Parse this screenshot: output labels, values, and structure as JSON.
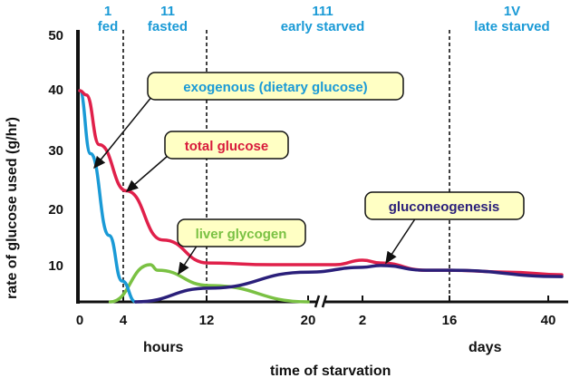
{
  "chart_data": {
    "type": "line",
    "title": "",
    "xlabel": "time of starvation",
    "x_unit_labels": {
      "hours": "hours",
      "days": "days"
    },
    "ylabel": "rate of glucose used (g/hr)",
    "ylim": [
      0,
      50
    ],
    "yticks": [
      "0",
      "10",
      "20",
      "30",
      "40",
      "50"
    ],
    "x_note": "x values in hours; axis has a break between 20 hours and 2 days",
    "xticks": [
      {
        "hours": 0,
        "label": "0"
      },
      {
        "hours": 4,
        "label": "4"
      },
      {
        "hours": 12,
        "label": "12"
      },
      {
        "hours": 20,
        "label": "20"
      },
      {
        "hours": 48,
        "label": "2"
      },
      {
        "hours": 384,
        "label": "16"
      },
      {
        "hours": 960,
        "label": "40"
      }
    ],
    "phases": [
      {
        "numeral": "1",
        "name": "fed"
      },
      {
        "numeral": "11",
        "name": "fasted"
      },
      {
        "numeral": "111",
        "name": "early starved"
      },
      {
        "numeral": "1V",
        "name": "late starved"
      }
    ],
    "phase_boundaries_hours": [
      4,
      12,
      384
    ],
    "series": [
      {
        "name": "total glucose",
        "color": "#e0204a",
        "x": [
          0,
          0.6,
          1.8,
          4.3,
          7.8,
          12.1,
          17.1,
          34,
          48,
          118,
          293,
          384,
          722,
          1039
        ],
        "y": [
          39.7,
          39,
          30.8,
          23,
          14.4,
          10.3,
          10,
          10,
          10.8,
          10.3,
          8.5,
          8.5,
          8,
          7.3
        ]
      },
      {
        "name": "exogenous (dietary glucose)",
        "color": "#1a9ad6",
        "x": [
          0,
          1,
          2.7,
          3.9,
          5.2
        ],
        "y": [
          39.7,
          29.3,
          15.2,
          5.6,
          0
        ]
      },
      {
        "name": "liver glycogen",
        "color": "#7ac143",
        "x": [
          2.8,
          6.6,
          7.3,
          12.2,
          20
        ],
        "y": [
          0,
          10,
          8.5,
          4.4,
          0
        ]
      },
      {
        "name": "gluconeogenesis",
        "color": "#2a1f7a",
        "x": [
          5.2,
          12.2,
          20,
          48,
          118,
          293,
          384,
          1039
        ],
        "y": [
          0,
          3.7,
          8,
          9.3,
          9.8,
          8.5,
          8.5,
          6.8
        ]
      }
    ],
    "annotations": [
      {
        "text": "exogenous (dietary glucose)",
        "color": "#1a9ad6"
      },
      {
        "text": "total glucose",
        "color": "#d81b3c"
      },
      {
        "text": "liver glycogen",
        "color": "#7ac143"
      },
      {
        "text": "gluconeogenesis",
        "color": "#2a1f7a"
      }
    ]
  }
}
